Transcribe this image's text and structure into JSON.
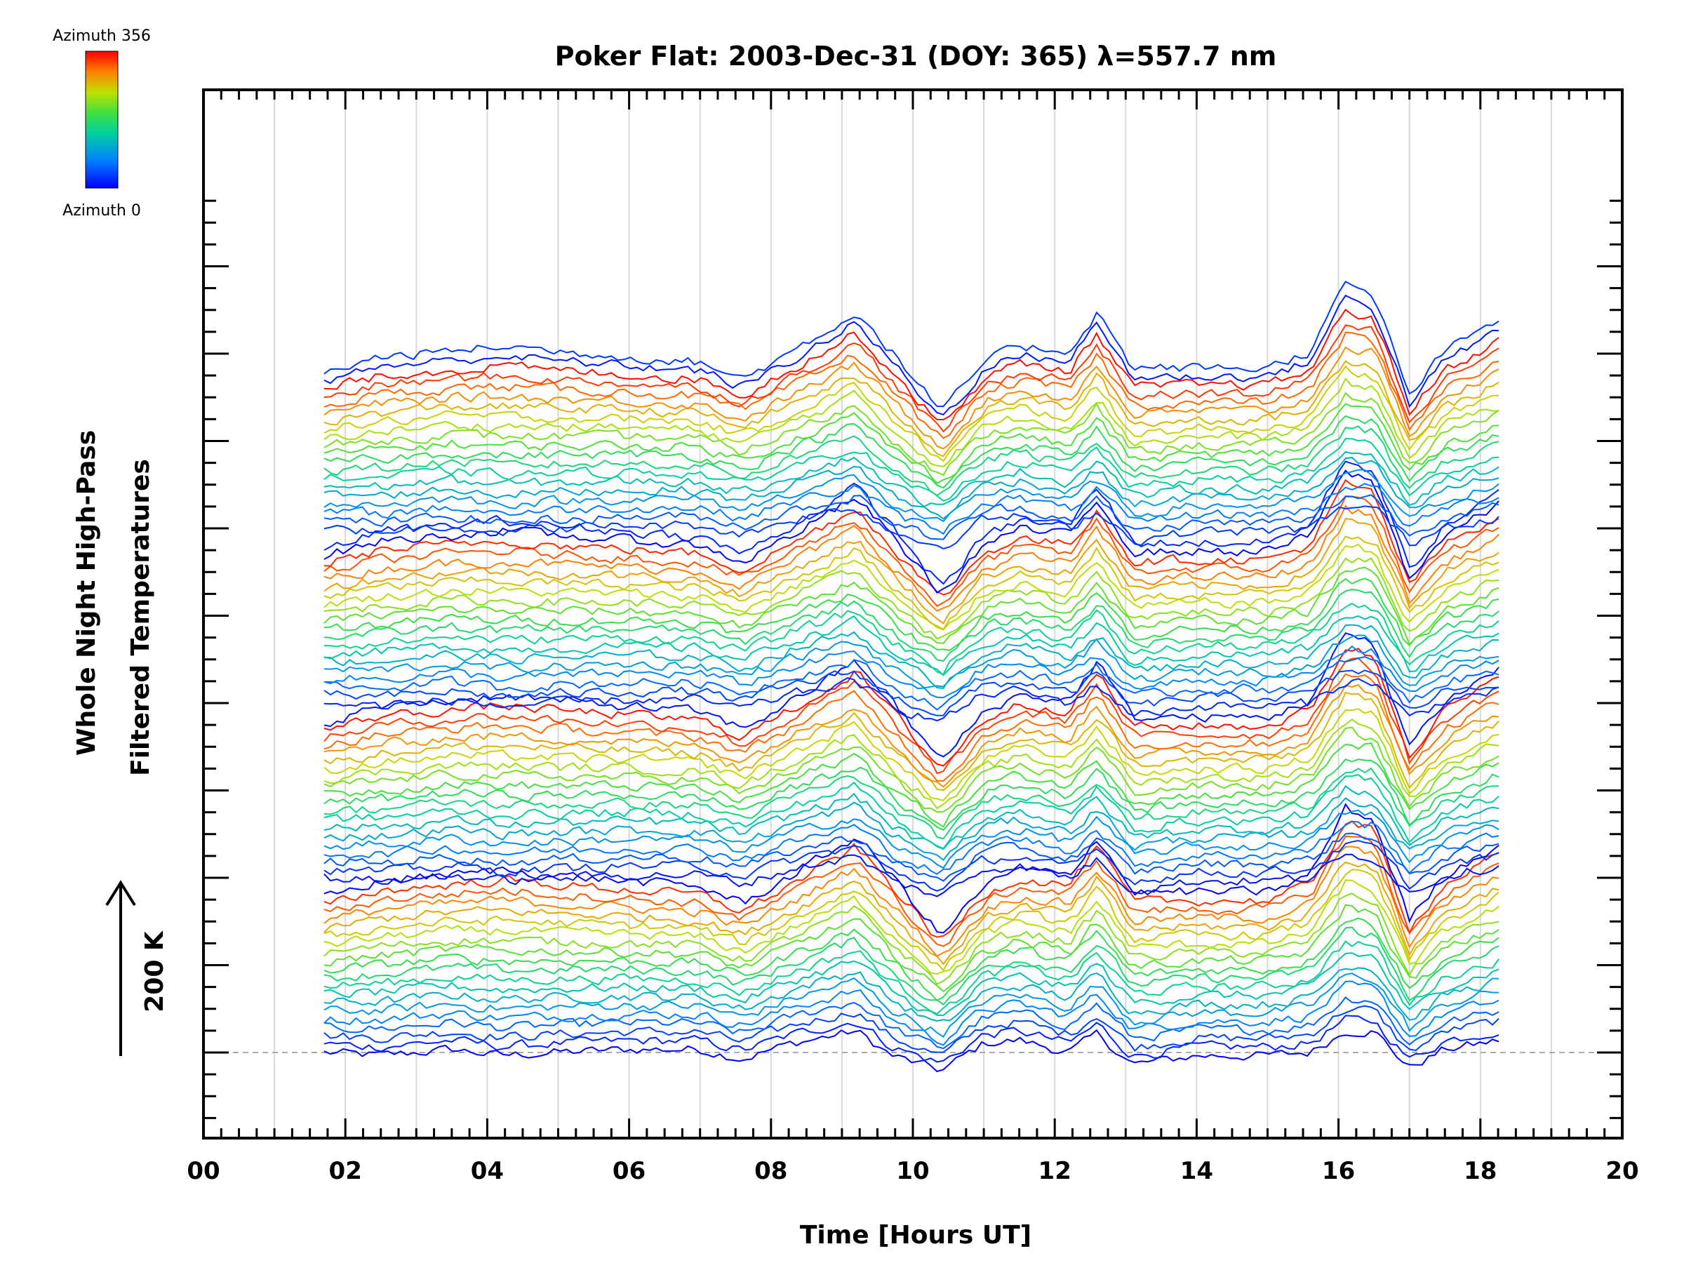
{
  "chart_data": {
    "type": "line",
    "title": "Poker Flat: 2003-Dec-31 (DOY: 365) λ=557.7 nm",
    "xlabel": "Time [Hours UT]",
    "ylabel_line1": "Whole Night High-Pass",
    "ylabel_line2": "Filtered Temperatures",
    "scale_label": "200 K",
    "xlim": [
      0,
      20
    ],
    "x_ticks": [
      "00",
      "02",
      "04",
      "06",
      "08",
      "10",
      "12",
      "14",
      "16",
      "18",
      "20"
    ],
    "x_start_hours": 1.7,
    "x_end_hours": 18.3,
    "colorbar": {
      "top_label": "Azimuth 356",
      "bottom_label": "Azimuth 0"
    },
    "series_count": 80,
    "offset_per_series_K": 10,
    "grid": true,
    "anchors_hours": [
      1.7,
      2.5,
      3.5,
      4.2,
      5.0,
      6.0,
      7.0,
      7.6,
      8.3,
      9.2,
      9.7,
      10.4,
      11.0,
      11.5,
      12.2,
      12.6,
      13.1,
      14.0,
      15.0,
      15.6,
      16.1,
      16.5,
      17.0,
      17.5,
      18.3
    ],
    "profile_A_K": [
      0,
      -5,
      5,
      -5,
      0,
      5,
      5,
      -10,
      15,
      35,
      -5,
      -30,
      15,
      20,
      0,
      30,
      -20,
      -5,
      -5,
      0,
      35,
      35,
      -25,
      5,
      20
    ],
    "profile_B_K": [
      -10,
      5,
      10,
      15,
      10,
      5,
      0,
      -15,
      10,
      45,
      10,
      -45,
      0,
      15,
      10,
      45,
      -5,
      -5,
      -5,
      10,
      70,
      60,
      -30,
      10,
      40
    ],
    "colors": {
      "axis": "#000000",
      "grid": "#d8d8d8",
      "baseline": "#aaaaaa"
    }
  }
}
